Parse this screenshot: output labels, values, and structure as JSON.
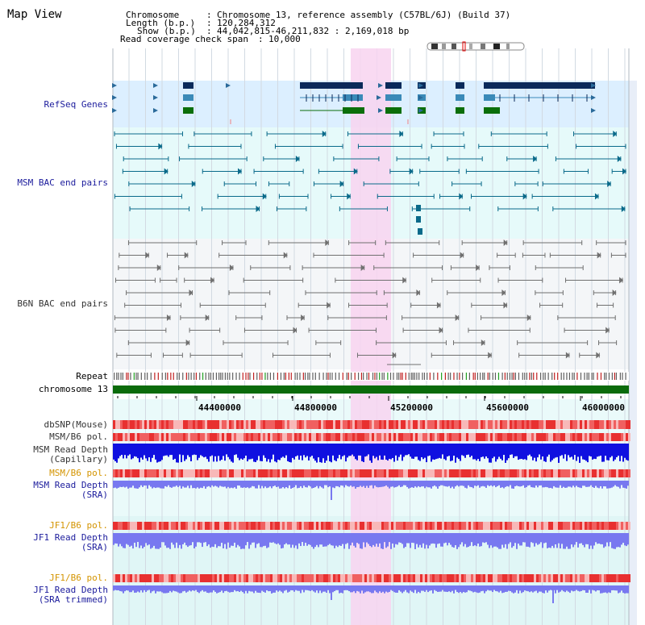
{
  "view": {
    "title": "Map View"
  },
  "info": {
    "chromosome_label": "Chromosome",
    "chromosome_value": "Chromosome 13, reference assembly (C57BL/6J) (Build 37)",
    "length_label": "Length (b.p.)",
    "length_value": "120,284,312",
    "show_label": "Show (b.p.)",
    "show_value": "44,042,815-46,211,832 : 2,169,018 bp",
    "coverage_label": "Read coverage check span",
    "coverage_value": "10,000"
  },
  "tracks": {
    "refseq": "RefSeq Genes",
    "msm_bac": "MSM BAC end pairs",
    "b6n_bac": "B6N BAC end pairs",
    "repeat": "Repeat",
    "chromosome": "chromosome 13",
    "dbsnp": "dbSNP(Mouse)",
    "msm_b6_pol": "MSM/B6 pol.",
    "msm_depth_cap_1": "MSM Read Depth",
    "msm_depth_cap_2": "(Capillary)",
    "msm_b6_pol_2": "MSM/B6 pol.",
    "msm_depth_sra_1": "MSM Read Depth",
    "msm_depth_sra_2": "(SRA)",
    "jf1_b6_pol": "JF1/B6 pol.",
    "jf1_depth_sra_1": "JF1 Read Depth",
    "jf1_depth_sra_2": "(SRA)",
    "jf1_b6_pol_2": "JF1/B6 pol.",
    "jf1_depth_trim_1": "JF1 Read Depth",
    "jf1_depth_trim_2": "(SRA trimmed)"
  },
  "axis": {
    "ticks": [
      "44400000",
      "44800000",
      "45200000",
      "45600000",
      "46000000"
    ]
  },
  "colors": {
    "highlight": "#f8d4f0",
    "refseq_bg": "#dcefff",
    "bac_bg": "#e6fafa",
    "b6n_bg": "#f4f6f8",
    "gene_dark": "#0a2a5a",
    "gene_mid": "#3a8ab8",
    "gene_green": "#0a6e0a",
    "msm_pair": "#0a6a8a",
    "b6n_pair": "#707070",
    "chrom_bar": "#0b6b0b",
    "depth_blue": "#1010e0",
    "depth_light": "#7878f0",
    "pol_red": "#f04040"
  }
}
